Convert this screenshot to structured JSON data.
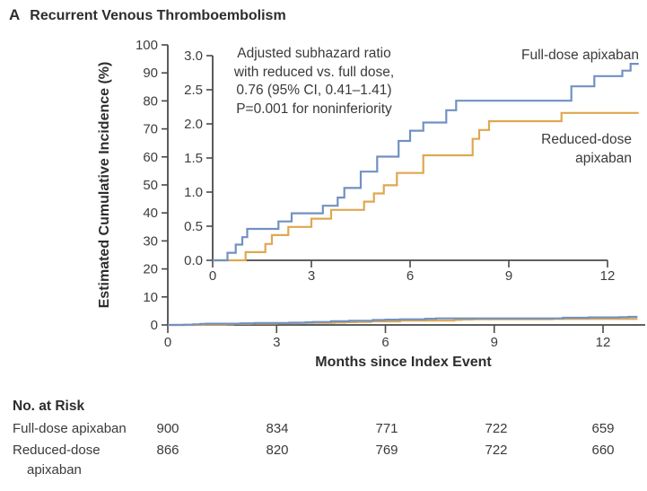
{
  "title": {
    "panel": "A",
    "text": "Recurrent Venous Thromboembolism"
  },
  "annotation": {
    "line1": "Adjusted subhazard ratio",
    "line2": "with reduced vs. full dose,",
    "line3": "0.76 (95% CI, 0.41–1.41)",
    "line4": "P=0.001 for noninferiority"
  },
  "curve_labels": {
    "full": "Full-dose apixaban",
    "reduced_line1": "Reduced-dose",
    "reduced_line2": "apixaban"
  },
  "axes": {
    "y_label": "Estimated Cumulative Incidence (%)",
    "x_label": "Months since Index Event",
    "main_y_tick_labels": [
      "0",
      "10",
      "20",
      "30",
      "40",
      "50",
      "60",
      "70",
      "80",
      "90",
      "100"
    ],
    "main_x_tick_labels": [
      "0",
      "3",
      "6",
      "9",
      "12"
    ],
    "inset_y_tick_labels": [
      "0.0",
      "0.5",
      "1.0",
      "1.5",
      "2.0",
      "2.5",
      "3.0"
    ],
    "inset_x_tick_labels": [
      "0",
      "3",
      "6",
      "9",
      "12"
    ]
  },
  "risk_table": {
    "heading": "No. at Risk",
    "rows": [
      {
        "label": "Full-dose apixaban",
        "label_line2": "",
        "values": [
          "900",
          "834",
          "771",
          "722",
          "659"
        ]
      },
      {
        "label": "Reduced-dose",
        "label_line2": "apixaban",
        "values": [
          "866",
          "820",
          "769",
          "722",
          "660"
        ]
      }
    ]
  },
  "chart_data": {
    "type": "line",
    "subtype": "cumulative-incidence-step-curves-with-inset",
    "title": "Recurrent Venous Thromboembolism",
    "xlabel": "Months since Index Event",
    "ylabel": "Estimated Cumulative Incidence (%)",
    "annotation": "Adjusted subhazard ratio with reduced vs. full dose, 0.76 (95% CI, 0.41–1.41) P=0.001 for noninferiority",
    "main_axis": {
      "xlim": [
        0,
        13.2
      ],
      "ylim": [
        0,
        100
      ],
      "xticks": [
        0,
        3,
        6,
        9,
        12
      ],
      "yticks": [
        0,
        10,
        20,
        30,
        40,
        50,
        60,
        70,
        80,
        90,
        100
      ],
      "grid": false
    },
    "inset_axis": {
      "xlim": [
        0,
        12
      ],
      "ylim": [
        0,
        3.0
      ],
      "xticks": [
        0,
        3,
        6,
        9,
        12
      ],
      "yticks": [
        0,
        0.5,
        1.0,
        1.5,
        2.0,
        2.5,
        3.0
      ],
      "grid": false
    },
    "legend_position": "inline-right",
    "series": [
      {
        "name": "Full-dose apixaban",
        "color": "#7191C2",
        "step_x": [
          0,
          0.45,
          0.7,
          0.9,
          1.05,
          2.0,
          2.4,
          3.35,
          3.8,
          4.0,
          4.5,
          5.0,
          5.65,
          6.0,
          6.4,
          7.1,
          7.4,
          10.9,
          11.6,
          12.45,
          12.7,
          12.95
        ],
        "step_y": [
          0,
          0.11,
          0.23,
          0.34,
          0.46,
          0.57,
          0.69,
          0.8,
          0.92,
          1.06,
          1.3,
          1.52,
          1.75,
          1.9,
          2.02,
          2.2,
          2.34,
          2.55,
          2.7,
          2.78,
          2.88,
          2.88
        ]
      },
      {
        "name": "Reduced-dose apixaban",
        "color": "#DFA750",
        "step_x": [
          0,
          1.0,
          1.6,
          1.8,
          2.3,
          3.0,
          3.6,
          4.6,
          4.9,
          5.2,
          5.6,
          6.4,
          7.9,
          8.1,
          8.4,
          10.6,
          12.95
        ],
        "step_y": [
          0,
          0.12,
          0.24,
          0.37,
          0.49,
          0.61,
          0.74,
          0.86,
          0.98,
          1.1,
          1.28,
          1.54,
          1.78,
          1.91,
          2.04,
          2.16,
          2.16
        ]
      }
    ],
    "no_at_risk": {
      "timepoints_months": [
        0,
        3,
        6,
        9,
        12
      ],
      "Full-dose apixaban": [
        900,
        834,
        771,
        722,
        659
      ],
      "Reduced-dose apixaban": [
        866,
        820,
        769,
        722,
        660
      ]
    }
  }
}
